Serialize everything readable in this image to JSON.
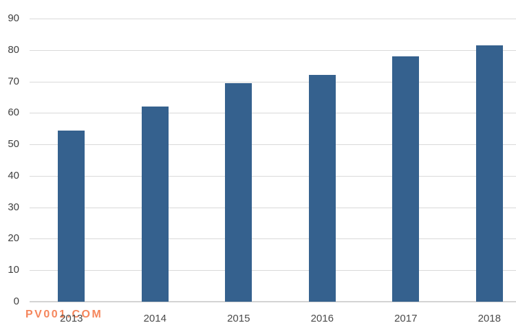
{
  "chart_data": {
    "type": "bar",
    "categories": [
      "2013",
      "2014",
      "2015",
      "2016",
      "2017",
      "2018"
    ],
    "values": [
      54.5,
      62,
      69.5,
      72,
      78,
      81.5
    ],
    "title": "",
    "xlabel": "",
    "ylabel": "",
    "ylim": [
      0,
      90
    ],
    "yticks": [
      0,
      10,
      20,
      30,
      40,
      50,
      60,
      70,
      80,
      90
    ],
    "grid": true,
    "legend": false,
    "bar_color": "#35618e"
  },
  "watermark": {
    "text": "PV001.COM",
    "color": "#f4794b"
  },
  "colors": {
    "background": "#ffffff",
    "gridline": "#d9d9d9",
    "axis_baseline": "#d3d3d3",
    "y_tick_label": "#3f3f3f",
    "x_tick_label": "#4a4a4a"
  }
}
